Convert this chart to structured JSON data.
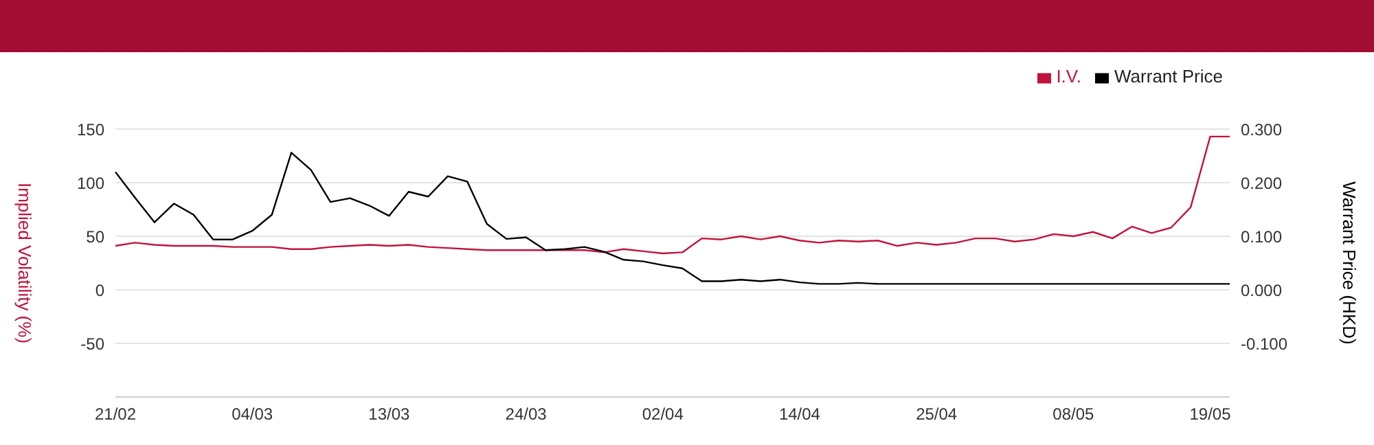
{
  "chart_data": {
    "type": "line",
    "categories": [
      "21/02",
      null,
      null,
      null,
      null,
      null,
      null,
      "04/03",
      null,
      null,
      null,
      null,
      null,
      null,
      "13/03",
      null,
      null,
      null,
      null,
      null,
      null,
      "24/03",
      null,
      null,
      null,
      null,
      null,
      null,
      "02/04",
      null,
      null,
      null,
      null,
      null,
      null,
      "14/04",
      null,
      null,
      null,
      null,
      null,
      null,
      "25/04",
      null,
      null,
      null,
      null,
      null,
      null,
      "08/05",
      null,
      null,
      null,
      null,
      null,
      null,
      "19/05",
      null
    ],
    "series": [
      {
        "name": "I.V.",
        "color": "#c0143c",
        "values": [
          41,
          44,
          42,
          41,
          41,
          41,
          40,
          40,
          40,
          38,
          38,
          40,
          41,
          42,
          41,
          42,
          40,
          39,
          38,
          37,
          37,
          37,
          37,
          37,
          37,
          35,
          38,
          36,
          34,
          35,
          48,
          47,
          50,
          47,
          50,
          46,
          44,
          46,
          45,
          46,
          41,
          44,
          42,
          44,
          48,
          48,
          45,
          47,
          52,
          50,
          54,
          48,
          59,
          53,
          58,
          77,
          143,
          143
        ]
      },
      {
        "name": "Warrant Price",
        "color": "#000000",
        "axis": "y2",
        "values": [
          0.22,
          0.172,
          0.126,
          0.161,
          0.14,
          0.094,
          0.094,
          0.11,
          0.14,
          0.256,
          0.224,
          0.164,
          0.171,
          0.157,
          0.138,
          0.183,
          0.174,
          0.212,
          0.202,
          0.123,
          0.095,
          0.098,
          0.074,
          0.076,
          0.08,
          0.071,
          0.056,
          0.053,
          0.046,
          0.04,
          0.016,
          0.016,
          0.019,
          0.016,
          0.019,
          0.014,
          0.011,
          0.011,
          0.013,
          0.011,
          0.011,
          0.011,
          0.011,
          0.011,
          0.011,
          0.011,
          0.011,
          0.011,
          0.011,
          0.011,
          0.011,
          0.011,
          0.011,
          0.011,
          0.011,
          0.011,
          0.011,
          0.011
        ]
      }
    ],
    "ylabel": "Implied Volatility (%)",
    "y2label": "Warrant Price (HKD)",
    "ylim": [
      -100,
      150
    ],
    "yticks": [
      -50,
      0,
      50,
      100,
      150
    ],
    "y2lim": [
      -0.2,
      0.3
    ],
    "y2ticks": [
      {
        "value": -0.1,
        "label": "-0.100"
      },
      {
        "value": 0,
        "label": "0.000"
      },
      {
        "value": 0.1,
        "label": "0.100"
      },
      {
        "value": 0.2,
        "label": "0.200"
      },
      {
        "value": 0.3,
        "label": "0.300"
      }
    ],
    "grid": "y",
    "legend": "top right",
    "marker": "none",
    "line_style": "solid"
  }
}
